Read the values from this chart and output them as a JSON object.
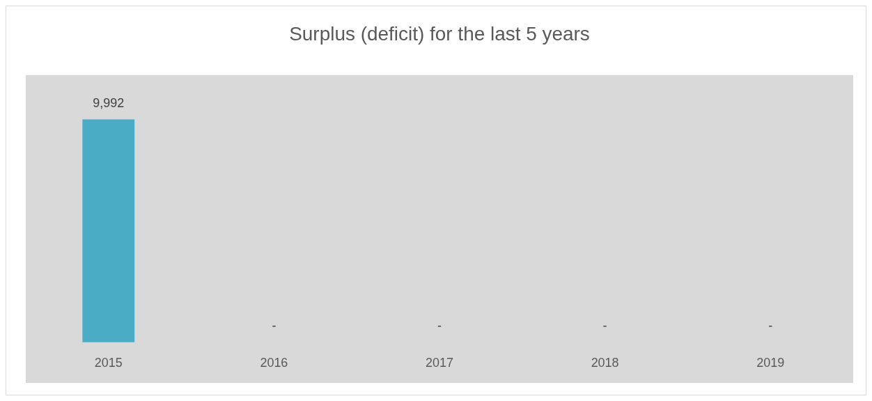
{
  "chart_data": {
    "type": "bar",
    "title": "Surplus (deficit) for the last 5 years",
    "categories": [
      "2015",
      "2016",
      "2017",
      "2018",
      "2019"
    ],
    "values": [
      9992,
      0,
      0,
      0,
      0
    ],
    "value_labels": [
      "9,992",
      "-",
      "-",
      "-",
      "-"
    ],
    "color": "#4bacc6"
  }
}
